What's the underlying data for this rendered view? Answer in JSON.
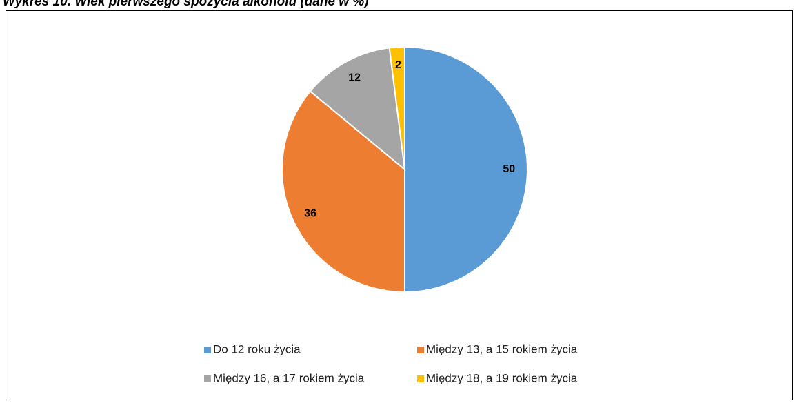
{
  "chart_data": {
    "type": "pie",
    "title": "Wykres 10. Wiek pierwszego spożycia alkoholu (dane w %)",
    "categories": [
      "Do 12 roku życia",
      "Między 13, a 15 rokiem życia",
      "Między 16, a 17 rokiem życia",
      "Między 18, a 19 rokiem życia"
    ],
    "values": [
      50,
      36,
      12,
      2
    ],
    "colors": [
      "#5b9bd5",
      "#ed7d31",
      "#a5a5a5",
      "#ffc000"
    ],
    "legend": "bottom"
  }
}
